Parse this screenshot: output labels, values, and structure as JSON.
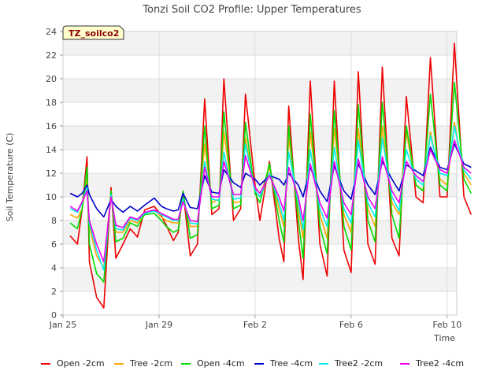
{
  "chart_data": {
    "type": "line",
    "title": "Tonzi Soil CO2 Profile: Upper Temperatures",
    "xlabel": "Time",
    "ylabel": "Soil Temperature (C)",
    "badge": "TZ_soilco2",
    "xlim": [
      0,
      16.4
    ],
    "ylim": [
      0,
      24
    ],
    "x_ticks": [
      {
        "value": 0,
        "label": "Jan 25"
      },
      {
        "value": 4,
        "label": "Jan 29"
      },
      {
        "value": 8,
        "label": "Feb 2"
      },
      {
        "value": 12,
        "label": "Feb 6"
      },
      {
        "value": 16,
        "label": "Feb 10"
      }
    ],
    "y_ticks": [
      0,
      2,
      4,
      6,
      8,
      10,
      12,
      14,
      16,
      18,
      20,
      22,
      24
    ],
    "grid": true,
    "legend_position": "bottom",
    "series": [
      {
        "name": "Open -2cm",
        "color": "#ee0000",
        "x": [
          0.3,
          0.6,
          0.8,
          1.0,
          1.1,
          1.4,
          1.7,
          2.0,
          2.2,
          2.5,
          2.8,
          3.1,
          3.4,
          3.8,
          4.1,
          4.3,
          4.6,
          4.8,
          5.0,
          5.3,
          5.6,
          5.9,
          6.2,
          6.5,
          6.7,
          7.1,
          7.4,
          7.6,
          8.0,
          8.2,
          8.6,
          9.0,
          9.2,
          9.4,
          9.8,
          10.0,
          10.3,
          10.7,
          11.0,
          11.3,
          11.7,
          12.0,
          12.3,
          12.7,
          13.0,
          13.3,
          13.7,
          14.0,
          14.3,
          14.7,
          15.0,
          15.3,
          15.7,
          16.0,
          16.3,
          16.7,
          17.0
        ],
        "y": [
          6.7,
          6.0,
          9.0,
          13.4,
          4.5,
          1.5,
          0.6,
          10.8,
          4.8,
          6.0,
          7.3,
          6.6,
          8.9,
          9.2,
          8.4,
          7.6,
          6.3,
          7.0,
          10.5,
          5.0,
          6.0,
          18.3,
          8.5,
          9.0,
          20.0,
          8.0,
          9.0,
          18.7,
          11.0,
          8.0,
          13.0,
          6.5,
          4.5,
          17.7,
          6.5,
          3.0,
          19.8,
          6.0,
          3.3,
          19.8,
          5.5,
          3.6,
          20.6,
          6.0,
          4.3,
          21.0,
          6.5,
          5.0,
          18.5,
          10.0,
          9.5,
          21.8,
          10.0,
          10.0,
          23.0,
          10.0,
          8.5
        ]
      },
      {
        "name": "Tree -2cm",
        "color": "#ffa500",
        "x": [
          0.3,
          0.6,
          0.8,
          1.0,
          1.1,
          1.4,
          1.7,
          2.0,
          2.2,
          2.5,
          2.8,
          3.1,
          3.4,
          3.8,
          4.1,
          4.3,
          4.6,
          4.8,
          5.0,
          5.3,
          5.6,
          5.9,
          6.2,
          6.5,
          6.7,
          7.1,
          7.4,
          7.6,
          8.0,
          8.2,
          8.6,
          9.0,
          9.2,
          9.4,
          9.8,
          10.0,
          10.3,
          10.7,
          11.0,
          11.3,
          11.7,
          12.0,
          12.3,
          12.7,
          13.0,
          13.3,
          13.7,
          14.0,
          14.3,
          14.7,
          15.0,
          15.3,
          15.7,
          16.0,
          16.3,
          16.7,
          17.0
        ],
        "y": [
          8.5,
          8.2,
          9.0,
          11.5,
          7.5,
          5.0,
          4.0,
          10.5,
          7.0,
          7.0,
          8.0,
          7.8,
          8.6,
          8.9,
          8.3,
          8.0,
          7.8,
          7.8,
          9.8,
          7.5,
          7.5,
          14.5,
          9.5,
          9.8,
          15.5,
          9.5,
          9.6,
          15.0,
          10.5,
          10.0,
          12.5,
          9.0,
          7.5,
          15.0,
          9.0,
          6.5,
          15.5,
          8.5,
          6.5,
          15.8,
          8.5,
          7.0,
          15.8,
          9.0,
          7.5,
          16.0,
          9.5,
          8.5,
          15.5,
          11.0,
          10.5,
          15.5,
          11.5,
          11.0,
          16.3,
          12.0,
          11.0
        ]
      },
      {
        "name": "Open -4cm",
        "color": "#00dd00",
        "x": [
          0.3,
          0.6,
          0.8,
          1.0,
          1.1,
          1.4,
          1.7,
          2.0,
          2.2,
          2.5,
          2.8,
          3.1,
          3.4,
          3.8,
          4.1,
          4.3,
          4.6,
          4.8,
          5.0,
          5.3,
          5.6,
          5.9,
          6.2,
          6.5,
          6.7,
          7.1,
          7.4,
          7.6,
          8.0,
          8.2,
          8.6,
          9.0,
          9.2,
          9.4,
          9.8,
          10.0,
          10.3,
          10.7,
          11.0,
          11.3,
          11.7,
          12.0,
          12.3,
          12.7,
          13.0,
          13.3,
          13.7,
          14.0,
          14.3,
          14.7,
          15.0,
          15.3,
          15.7,
          16.0,
          16.3,
          16.7,
          17.0
        ],
        "y": [
          7.8,
          7.3,
          9.0,
          12.5,
          6.0,
          3.5,
          2.8,
          10.5,
          6.2,
          6.5,
          7.8,
          7.5,
          8.5,
          8.6,
          8.0,
          7.5,
          7.0,
          7.2,
          10.5,
          6.5,
          6.8,
          16.0,
          9.0,
          9.3,
          17.2,
          9.0,
          9.3,
          16.3,
          10.3,
          9.5,
          12.8,
          8.0,
          6.2,
          16.0,
          8.0,
          4.8,
          17.0,
          7.5,
          5.2,
          17.3,
          7.5,
          5.5,
          17.8,
          8.0,
          6.2,
          18.0,
          8.5,
          6.5,
          16.0,
          11.0,
          10.5,
          18.7,
          11.0,
          10.5,
          19.7,
          11.5,
          10.3
        ]
      },
      {
        "name": "Tree -4cm",
        "color": "#0000cc",
        "x": [
          0.3,
          0.6,
          0.8,
          1.0,
          1.1,
          1.4,
          1.7,
          2.0,
          2.2,
          2.5,
          2.8,
          3.1,
          3.4,
          3.8,
          4.1,
          4.3,
          4.6,
          4.8,
          5.0,
          5.3,
          5.6,
          5.9,
          6.2,
          6.5,
          6.7,
          7.1,
          7.4,
          7.6,
          8.0,
          8.2,
          8.6,
          9.0,
          9.2,
          9.4,
          9.8,
          10.0,
          10.3,
          10.7,
          11.0,
          11.3,
          11.7,
          12.0,
          12.3,
          12.7,
          13.0,
          13.3,
          13.7,
          14.0,
          14.3,
          14.7,
          15.0,
          15.3,
          15.7,
          16.0,
          16.3,
          16.7,
          17.0
        ],
        "y": [
          10.3,
          10.0,
          10.3,
          11.0,
          10.2,
          9.0,
          8.3,
          9.8,
          9.2,
          8.7,
          9.2,
          8.8,
          9.3,
          9.9,
          9.2,
          9.0,
          8.8,
          8.9,
          10.3,
          9.1,
          9.0,
          11.8,
          10.4,
          10.3,
          12.3,
          11.2,
          10.8,
          12.0,
          11.5,
          11.0,
          11.8,
          11.5,
          11.0,
          12.0,
          11.0,
          10.0,
          12.5,
          10.5,
          9.6,
          12.6,
          10.5,
          9.8,
          12.8,
          11.0,
          10.2,
          13.0,
          11.5,
          10.5,
          12.7,
          12.2,
          11.8,
          14.2,
          12.5,
          12.3,
          14.5,
          12.8,
          12.5
        ]
      },
      {
        "name": "Tree2 -2cm",
        "color": "#00eeee",
        "x": [
          0.3,
          0.6,
          0.8,
          1.0,
          1.1,
          1.4,
          1.7,
          2.0,
          2.2,
          2.5,
          2.8,
          3.1,
          3.4,
          3.8,
          4.1,
          4.3,
          4.6,
          4.8,
          5.0,
          5.3,
          5.6,
          5.9,
          6.2,
          6.5,
          6.7,
          7.1,
          7.4,
          7.6,
          8.0,
          8.2,
          8.6,
          9.0,
          9.2,
          9.4,
          9.8,
          10.0,
          10.3,
          10.7,
          11.0,
          11.3,
          11.7,
          12.0,
          12.3,
          12.7,
          13.0,
          13.3,
          13.7,
          14.0,
          14.3,
          14.7,
          15.0,
          15.3,
          15.7,
          16.0,
          16.3,
          16.7,
          17.0
        ],
        "y": [
          9.0,
          8.7,
          9.5,
          10.8,
          7.8,
          5.5,
          3.8,
          10.2,
          7.3,
          7.2,
          8.2,
          8.0,
          8.6,
          8.8,
          8.5,
          8.3,
          8.0,
          8.0,
          9.8,
          7.8,
          7.7,
          13.0,
          9.8,
          9.7,
          13.8,
          9.8,
          9.9,
          14.5,
          10.5,
          10.0,
          12.0,
          9.5,
          8.0,
          13.8,
          9.5,
          7.2,
          14.0,
          9.0,
          7.5,
          14.2,
          9.0,
          7.8,
          14.8,
          9.5,
          8.3,
          15.0,
          10.0,
          8.8,
          14.0,
          11.5,
          11.0,
          15.2,
          12.0,
          11.8,
          16.0,
          12.3,
          11.5
        ]
      },
      {
        "name": "Tree2 -4cm",
        "color": "#ee00ee",
        "x": [
          0.3,
          0.6,
          0.8,
          1.0,
          1.1,
          1.4,
          1.7,
          2.0,
          2.2,
          2.5,
          2.8,
          3.1,
          3.4,
          3.8,
          4.1,
          4.3,
          4.6,
          4.8,
          5.0,
          5.3,
          5.6,
          5.9,
          6.2,
          6.5,
          6.7,
          7.1,
          7.4,
          7.6,
          8.0,
          8.2,
          8.6,
          9.0,
          9.2,
          9.4,
          9.8,
          10.0,
          10.3,
          10.7,
          11.0,
          11.3,
          11.7,
          12.0,
          12.3,
          12.7,
          13.0,
          13.3,
          13.7,
          14.0,
          14.3,
          14.7,
          15.0,
          15.3,
          15.7,
          16.0,
          16.3,
          16.7,
          17.0
        ],
        "y": [
          9.2,
          8.8,
          9.6,
          10.5,
          8.0,
          6.0,
          4.5,
          10.0,
          7.6,
          7.4,
          8.3,
          8.1,
          8.7,
          8.9,
          8.6,
          8.4,
          8.1,
          8.1,
          9.6,
          8.0,
          7.9,
          12.5,
          10.0,
          10.0,
          13.0,
          10.2,
          10.2,
          13.5,
          10.8,
          10.3,
          11.8,
          10.0,
          8.8,
          12.5,
          10.0,
          8.0,
          12.8,
          9.5,
          8.2,
          13.0,
          9.5,
          8.5,
          13.2,
          10.0,
          9.0,
          13.4,
          10.5,
          9.5,
          13.0,
          11.8,
          11.3,
          14.0,
          12.3,
          12.0,
          14.8,
          12.5,
          12.0
        ]
      }
    ]
  }
}
